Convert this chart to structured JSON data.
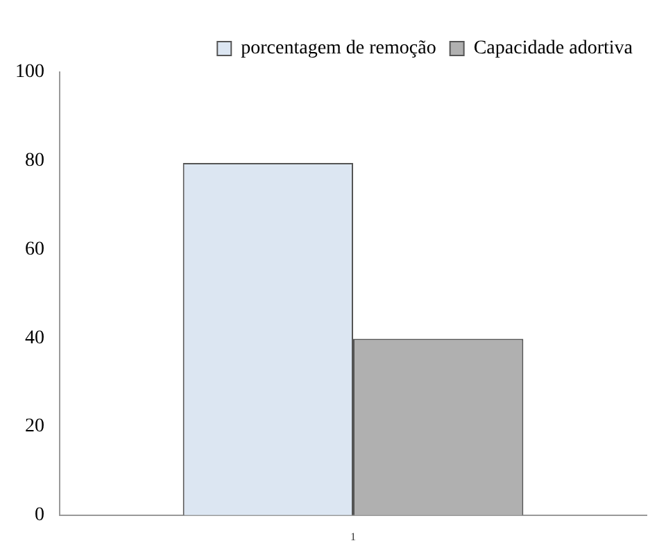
{
  "chart_data": {
    "type": "bar",
    "categories": [
      "1"
    ],
    "series": [
      {
        "name": "porcentagem de remoção",
        "color": "#dce6f2",
        "values": [
          79.5
        ]
      },
      {
        "name": "Capacidade adortiva",
        "color": "#b0b0b0",
        "values": [
          39.8
        ]
      }
    ],
    "ylim": [
      0,
      100
    ],
    "yticks": [
      0,
      20,
      40,
      60,
      80,
      100
    ],
    "grid": false,
    "legend": "top right"
  }
}
